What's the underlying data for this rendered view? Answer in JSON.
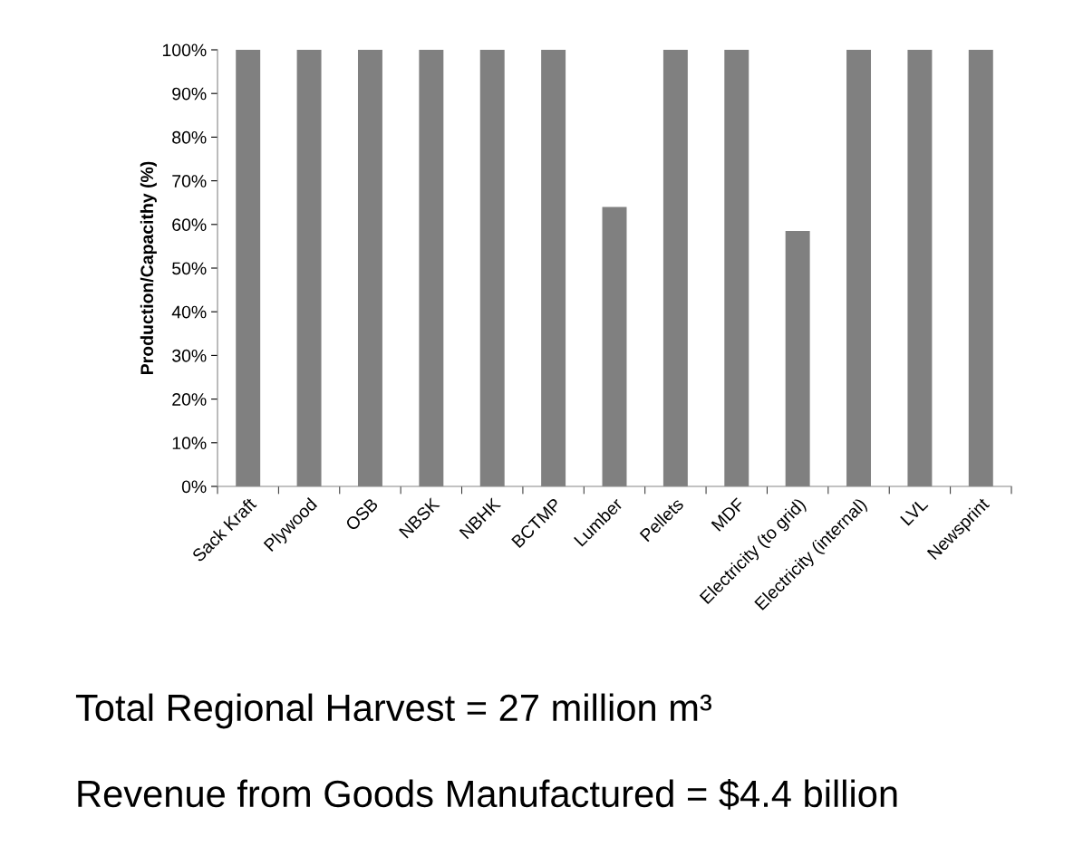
{
  "chart_data": {
    "type": "bar",
    "ylabel": "Production/Capacithy (%)",
    "categories": [
      "Sack Kraft",
      "Plywood",
      "OSB",
      "NBSK",
      "NBHK",
      "BCTMP",
      "Lumber",
      "Pellets",
      "MDF",
      "Electricity (to grid)",
      "Electricity (internal)",
      "LVL",
      "Newsprint"
    ],
    "values": [
      100,
      100,
      100,
      100,
      100,
      100,
      64,
      100,
      100,
      58.5,
      100,
      100,
      100
    ],
    "color": "#808080",
    "ylim": [
      0,
      100
    ],
    "yticks": [
      {
        "value": 0,
        "label": "0%"
      },
      {
        "value": 10,
        "label": "10%"
      },
      {
        "value": 20,
        "label": "20%"
      },
      {
        "value": 30,
        "label": "30%"
      },
      {
        "value": 40,
        "label": "40%"
      },
      {
        "value": 50,
        "label": "50%"
      },
      {
        "value": 60,
        "label": "60%"
      },
      {
        "value": 70,
        "label": "70%"
      },
      {
        "value": 80,
        "label": "80%"
      },
      {
        "value": 90,
        "label": "90%"
      },
      {
        "value": 100,
        "label": "100%"
      }
    ],
    "annotations": [
      "Total Regional Harvest = 27 million m³",
      "Revenue from Goods Manufactured = $4.4 billion"
    ]
  }
}
